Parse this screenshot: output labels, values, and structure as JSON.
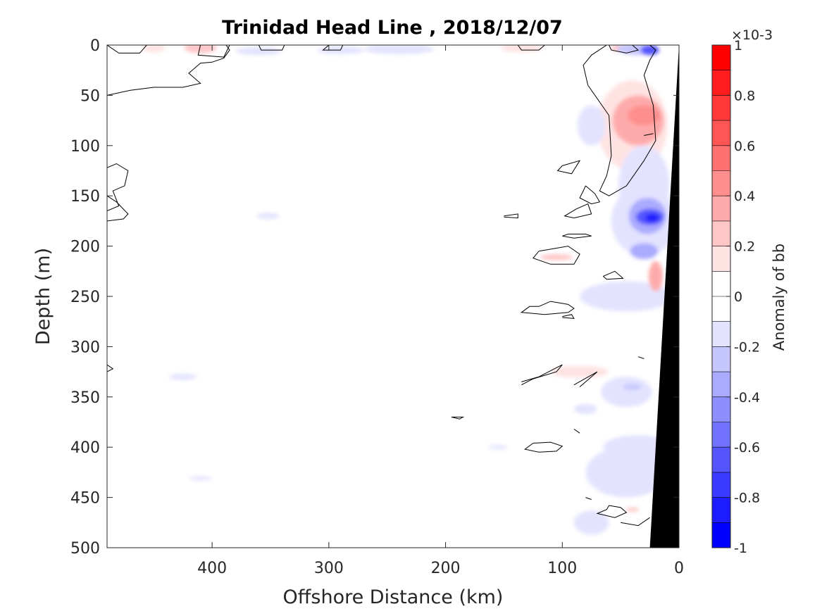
{
  "chart_data": {
    "type": "contour",
    "title": "Trinidad Head Line , 2018/12/07",
    "xlabel": "Offshore Distance (km)",
    "ylabel": "Depth (m)",
    "xlim": [
      490,
      0
    ],
    "ylim": [
      0,
      500
    ],
    "xticks": [
      400,
      300,
      200,
      100,
      0
    ],
    "yticks": [
      0,
      50,
      100,
      150,
      200,
      250,
      300,
      350,
      400,
      450,
      500
    ],
    "x_axis_reversed": true,
    "y_axis_reversed": true,
    "colorbar": {
      "label": "Anomaly of bb",
      "multiplier": "×10-3",
      "range": [
        -1,
        1
      ],
      "ticks": [
        1,
        0.8,
        0.6,
        0.4,
        0.2,
        0,
        -0.2,
        -0.4,
        -0.6,
        -0.8,
        -1
      ],
      "tick_labels": [
        "1",
        "0.8",
        "0.6",
        "0.4",
        "0.2",
        "0",
        "-0.2",
        "-0.4",
        "-0.6",
        "-0.8",
        "-1"
      ],
      "levels": [
        {
          "from": 0.9,
          "to": 1.0,
          "color": "#ff0000"
        },
        {
          "from": 0.8,
          "to": 0.9,
          "color": "#ff1c1c"
        },
        {
          "from": 0.7,
          "to": 0.8,
          "color": "#ff3939"
        },
        {
          "from": 0.6,
          "to": 0.7,
          "color": "#ff5555"
        },
        {
          "from": 0.5,
          "to": 0.6,
          "color": "#ff7171"
        },
        {
          "from": 0.4,
          "to": 0.5,
          "color": "#ff8e8e"
        },
        {
          "from": 0.3,
          "to": 0.4,
          "color": "#ffaaaa"
        },
        {
          "from": 0.2,
          "to": 0.3,
          "color": "#ffc6c6"
        },
        {
          "from": 0.1,
          "to": 0.2,
          "color": "#ffe3e3"
        },
        {
          "from": 0.0,
          "to": 0.1,
          "color": "#ffffff"
        },
        {
          "from": -0.1,
          "to": 0.0,
          "color": "#ffffff"
        },
        {
          "from": -0.2,
          "to": -0.1,
          "color": "#e3e3ff"
        },
        {
          "from": -0.3,
          "to": -0.2,
          "color": "#c6c6ff"
        },
        {
          "from": -0.4,
          "to": -0.3,
          "color": "#aaaaff"
        },
        {
          "from": -0.5,
          "to": -0.4,
          "color": "#8e8eff"
        },
        {
          "from": -0.6,
          "to": -0.5,
          "color": "#7171ff"
        },
        {
          "from": -0.7,
          "to": -0.6,
          "color": "#5555ff"
        },
        {
          "from": -0.8,
          "to": -0.7,
          "color": "#3939ff"
        },
        {
          "from": -0.9,
          "to": -0.8,
          "color": "#1c1cff"
        },
        {
          "from": -1.0,
          "to": -0.9,
          "color": "#0000ff"
        }
      ]
    },
    "anomaly_blobs": [
      {
        "x": 410,
        "y": 3,
        "rx": 14,
        "ry": 5,
        "value": 0.2
      },
      {
        "x": 450,
        "y": 3,
        "rx": 10,
        "ry": 4,
        "value": 0.15
      },
      {
        "x": 135,
        "y": 3,
        "rx": 18,
        "ry": 4,
        "value": 0.15
      },
      {
        "x": 50,
        "y": 3,
        "rx": 8,
        "ry": 4,
        "value": 0.2
      },
      {
        "x": 290,
        "y": 5,
        "rx": 20,
        "ry": 4,
        "value": -0.15
      },
      {
        "x": 240,
        "y": 4,
        "rx": 30,
        "ry": 5,
        "value": -0.15
      },
      {
        "x": 360,
        "y": 6,
        "rx": 20,
        "ry": 4,
        "value": -0.15
      },
      {
        "x": 35,
        "y": 4,
        "rx": 18,
        "ry": 6,
        "value": -0.3
      },
      {
        "x": 25,
        "y": 5,
        "rx": 8,
        "ry": 5,
        "value": -0.7
      },
      {
        "x": 40,
        "y": 80,
        "rx": 30,
        "ry": 45,
        "value": 0.15
      },
      {
        "x": 35,
        "y": 75,
        "rx": 22,
        "ry": 25,
        "value": 0.3
      },
      {
        "x": 30,
        "y": 70,
        "rx": 14,
        "ry": 10,
        "value": 0.4
      },
      {
        "x": 75,
        "y": 80,
        "rx": 12,
        "ry": 20,
        "value": -0.15
      },
      {
        "x": 30,
        "y": 140,
        "rx": 22,
        "ry": 40,
        "value": -0.2
      },
      {
        "x": 30,
        "y": 175,
        "rx": 28,
        "ry": 35,
        "value": -0.2
      },
      {
        "x": 27,
        "y": 170,
        "rx": 16,
        "ry": 18,
        "value": -0.4
      },
      {
        "x": 25,
        "y": 171,
        "rx": 12,
        "ry": 8,
        "value": -0.7
      },
      {
        "x": 23,
        "y": 172,
        "rx": 6,
        "ry": 4,
        "value": -0.9
      },
      {
        "x": 30,
        "y": 205,
        "rx": 12,
        "ry": 8,
        "value": -0.4
      },
      {
        "x": 45,
        "y": 250,
        "rx": 40,
        "ry": 15,
        "value": -0.15
      },
      {
        "x": 20,
        "y": 230,
        "rx": 6,
        "ry": 15,
        "value": 0.3
      },
      {
        "x": 105,
        "y": 211,
        "rx": 14,
        "ry": 3,
        "value": 0.2
      },
      {
        "x": 352,
        "y": 170,
        "rx": 10,
        "ry": 3,
        "value": -0.15
      },
      {
        "x": 85,
        "y": 325,
        "rx": 25,
        "ry": 6,
        "value": 0.15
      },
      {
        "x": 45,
        "y": 345,
        "rx": 22,
        "ry": 15,
        "value": -0.15
      },
      {
        "x": 40,
        "y": 340,
        "rx": 8,
        "ry": 3,
        "value": -0.3
      },
      {
        "x": 80,
        "y": 362,
        "rx": 10,
        "ry": 5,
        "value": -0.15
      },
      {
        "x": 425,
        "y": 330,
        "rx": 12,
        "ry": 3,
        "value": -0.15
      },
      {
        "x": 45,
        "y": 425,
        "rx": 35,
        "ry": 25,
        "value": -0.15
      },
      {
        "x": 35,
        "y": 400,
        "rx": 30,
        "ry": 12,
        "value": -0.15
      },
      {
        "x": 155,
        "y": 400,
        "rx": 8,
        "ry": 2,
        "value": -0.15
      },
      {
        "x": 410,
        "y": 431,
        "rx": 10,
        "ry": 2,
        "value": -0.15
      },
      {
        "x": 75,
        "y": 475,
        "rx": 15,
        "ry": 12,
        "value": -0.15
      },
      {
        "x": 40,
        "y": 462,
        "rx": 6,
        "ry": 2,
        "value": 0.2
      }
    ],
    "zero_contours": [
      [
        [
          490,
          0
        ],
        [
          480,
          8
        ],
        [
          462,
          8
        ],
        [
          456,
          0
        ]
      ],
      [
        [
          490,
          50
        ],
        [
          470,
          45
        ],
        [
          450,
          42
        ],
        [
          425,
          42
        ],
        [
          410,
          38
        ],
        [
          420,
          28
        ],
        [
          410,
          18
        ],
        [
          400,
          17
        ],
        [
          390,
          13
        ],
        [
          385,
          5
        ],
        [
          388,
          0
        ]
      ],
      [
        [
          410,
          0
        ],
        [
          412,
          10
        ],
        [
          390,
          12
        ],
        [
          385,
          0
        ]
      ],
      [
        [
          360,
          0
        ],
        [
          358,
          5
        ],
        [
          340,
          5
        ],
        [
          338,
          0
        ]
      ],
      [
        [
          300,
          0
        ],
        [
          305,
          5
        ],
        [
          290,
          5
        ],
        [
          288,
          0
        ]
      ],
      [
        [
          115,
          0
        ],
        [
          120,
          5
        ],
        [
          135,
          5
        ],
        [
          138,
          0
        ]
      ],
      [
        [
          60,
          0
        ],
        [
          58,
          5
        ],
        [
          45,
          8
        ],
        [
          35,
          5
        ],
        [
          40,
          0
        ]
      ],
      [
        [
          490,
          122
        ],
        [
          482,
          118
        ],
        [
          472,
          125
        ],
        [
          475,
          140
        ],
        [
          485,
          145
        ],
        [
          480,
          160
        ],
        [
          490,
          165
        ]
      ],
      [
        [
          490,
          150
        ],
        [
          482,
          156
        ],
        [
          472,
          168
        ],
        [
          476,
          173
        ],
        [
          490,
          175
        ]
      ],
      [
        [
          490,
          318
        ],
        [
          485,
          322
        ],
        [
          490,
          325
        ]
      ],
      [
        [
          62,
          0
        ],
        [
          75,
          10
        ],
        [
          82,
          20
        ],
        [
          78,
          40
        ],
        [
          60,
          70
        ],
        [
          58,
          110
        ],
        [
          62,
          130
        ],
        [
          68,
          145
        ],
        [
          60,
          150
        ],
        [
          45,
          140
        ],
        [
          30,
          115
        ],
        [
          20,
          95
        ],
        [
          22,
          60
        ],
        [
          30,
          30
        ],
        [
          25,
          15
        ],
        [
          20,
          5
        ],
        [
          25,
          0
        ]
      ],
      [
        [
          80,
          140
        ],
        [
          72,
          148
        ],
        [
          68,
          156
        ],
        [
          75,
          158
        ],
        [
          85,
          152
        ],
        [
          82,
          145
        ],
        [
          80,
          140
        ]
      ],
      [
        [
          100,
          120
        ],
        [
          85,
          115
        ],
        [
          92,
          128
        ],
        [
          104,
          125
        ],
        [
          100,
          120
        ]
      ],
      [
        [
          88,
          163
        ],
        [
          78,
          158
        ],
        [
          75,
          168
        ],
        [
          90,
          172
        ],
        [
          98,
          170
        ],
        [
          88,
          163
        ]
      ],
      [
        [
          150,
          170
        ],
        [
          138,
          168
        ],
        [
          138,
          172
        ],
        [
          150,
          171
        ]
      ],
      [
        [
          100,
          190
        ],
        [
          90,
          192
        ],
        [
          75,
          190
        ],
        [
          80,
          188
        ],
        [
          95,
          188
        ],
        [
          100,
          190
        ]
      ],
      [
        [
          120,
          205
        ],
        [
          95,
          200
        ],
        [
          85,
          208
        ],
        [
          90,
          218
        ],
        [
          110,
          218
        ],
        [
          125,
          212
        ],
        [
          120,
          205
        ]
      ],
      [
        [
          65,
          230
        ],
        [
          55,
          225
        ],
        [
          48,
          232
        ],
        [
          62,
          233
        ],
        [
          65,
          230
        ]
      ],
      [
        [
          120,
          260
        ],
        [
          110,
          255
        ],
        [
          95,
          258
        ],
        [
          90,
          262
        ],
        [
          95,
          266
        ],
        [
          115,
          268
        ],
        [
          135,
          266
        ],
        [
          128,
          260
        ],
        [
          120,
          260
        ]
      ],
      [
        [
          100,
          270
        ],
        [
          92,
          268
        ],
        [
          90,
          272
        ],
        [
          100,
          271
        ]
      ],
      [
        [
          135,
          335
        ],
        [
          120,
          330
        ],
        [
          100,
          318
        ],
        [
          105,
          325
        ],
        [
          125,
          332
        ],
        [
          135,
          338
        ]
      ],
      [
        [
          90,
          338
        ],
        [
          70,
          325
        ],
        [
          85,
          340
        ]
      ],
      [
        [
          195,
          370
        ],
        [
          185,
          370
        ],
        [
          188,
          372
        ],
        [
          195,
          370
        ]
      ],
      [
        [
          125,
          396
        ],
        [
          110,
          395
        ],
        [
          100,
          399
        ],
        [
          105,
          404
        ],
        [
          120,
          405
        ],
        [
          132,
          402
        ],
        [
          125,
          396
        ]
      ],
      [
        [
          80,
          450
        ],
        [
          75,
          452
        ]
      ],
      [
        [
          60,
          458
        ],
        [
          50,
          460
        ],
        [
          45,
          465
        ],
        [
          55,
          470
        ],
        [
          70,
          466
        ],
        [
          62,
          462
        ],
        [
          60,
          458
        ]
      ],
      [
        [
          50,
          475
        ],
        [
          35,
          478
        ],
        [
          25,
          470
        ]
      ],
      [
        [
          90,
          382
        ],
        [
          85,
          386
        ]
      ],
      [
        [
          30,
          90
        ],
        [
          22,
          88
        ]
      ],
      [
        [
          35,
          310
        ],
        [
          30,
          312
        ]
      ]
    ],
    "bathymetry_polygon": [
      [
        0,
        0
      ],
      [
        0,
        500
      ],
      [
        25,
        500
      ]
    ]
  }
}
